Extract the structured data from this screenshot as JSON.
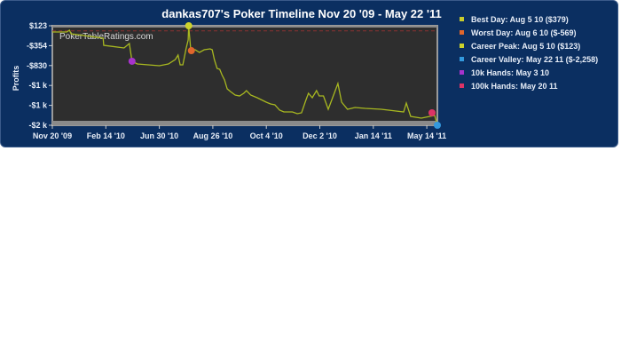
{
  "chart_data": {
    "type": "line",
    "title": "dankas707's Poker Timeline Nov 20 '09 - May 22 '11",
    "ylabel": "Profits",
    "xlabel": "",
    "watermark": "PokerTableRatings.com",
    "ylim": [
      -2258,
      123
    ],
    "y_tick_labels": [
      "$123",
      "-$354",
      "-$830",
      "-$1 k",
      "-$1 k",
      "-$2 k"
    ],
    "x_tick_labels": [
      "Nov 20 '09",
      "Feb 14 '10",
      "Jun 30 '10",
      "Aug 26 '10",
      "Oct 4 '10",
      "Dec 2 '10",
      "Jan 14 '11",
      "May 14 '11"
    ],
    "zero_line": {
      "value": 0,
      "style": "dashed",
      "color": "#8a3030"
    },
    "line_color": "#a8b820",
    "series": [
      {
        "x": [
          0,
          0.27,
          0.32,
          0.35,
          0.95,
          0.96,
          1.34,
          1.44,
          1.49,
          1.59,
          2.0,
          2.17,
          2.3,
          2.35,
          2.39,
          2.44,
          2.5,
          2.54,
          2.55,
          2.59,
          2.67,
          2.75,
          2.84,
          2.95,
          2.99,
          3.03,
          3.08,
          3.13,
          3.17,
          3.22,
          3.27,
          3.33,
          3.42,
          3.5,
          3.58,
          3.63,
          3.71,
          3.83,
          4.0,
          4.08,
          4.16,
          4.25,
          4.33,
          4.49,
          4.58,
          4.66,
          4.74,
          4.79,
          4.86,
          4.94,
          4.99,
          5.07,
          5.16,
          5.24,
          5.34,
          5.41,
          5.52,
          5.66,
          5.85,
          6.15,
          6.57,
          6.62,
          6.7,
          6.9,
          7.06,
          7.15,
          7.2
        ],
        "y": [
          -26,
          -26,
          17,
          -68,
          -175,
          -345,
          -409,
          -302,
          -727,
          -791,
          -834,
          -791,
          -685,
          -579,
          -812,
          -812,
          -430,
          -217,
          123,
          -473,
          -451,
          -515,
          -451,
          -430,
          -451,
          -685,
          -897,
          -919,
          -1046,
          -1174,
          -1386,
          -1450,
          -1535,
          -1556,
          -1493,
          -1429,
          -1535,
          -1599,
          -1705,
          -1748,
          -1769,
          -1897,
          -1939,
          -1939,
          -1982,
          -1960,
          -1663,
          -1492,
          -1599,
          -1429,
          -1556,
          -1556,
          -1875,
          -1599,
          -1259,
          -1705,
          -1875,
          -1833,
          -1854,
          -1875,
          -1939,
          -1727,
          -2045,
          -2088,
          -2045,
          -2024,
          -2258
        ]
      }
    ],
    "markers": [
      {
        "label": "Best Day: Aug 5 10 ($379)",
        "color": "#c8cc2c",
        "x": 2.55,
        "y": 123,
        "show_point": false
      },
      {
        "label": "Worst Day: Aug 6 10 ($-569)",
        "color": "#e0662c",
        "x": 2.6,
        "y": -473,
        "show_point": true
      },
      {
        "label": "Career Peak: Aug 5 10 ($123)",
        "color": "#ccd22c",
        "x": 2.55,
        "y": 123,
        "show_point": true
      },
      {
        "label": "Career Valley: May 22 11 ($-2,258)",
        "color": "#3399dd",
        "x": 7.2,
        "y": -2258,
        "show_point": true
      },
      {
        "label": "10k Hands: May 3 10",
        "color": "#a733cc",
        "x": 1.49,
        "y": -727,
        "show_point": true
      },
      {
        "label": "100k Hands: May 20 11",
        "color": "#dd3366",
        "x": 7.1,
        "y": -1960,
        "show_point": true
      }
    ],
    "legend_position": "right"
  }
}
